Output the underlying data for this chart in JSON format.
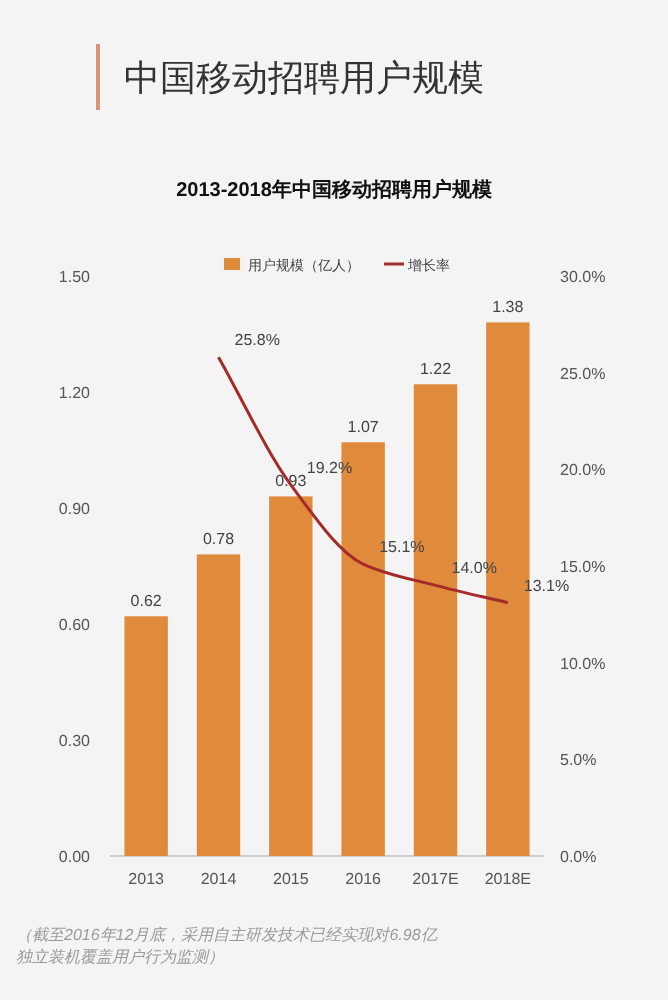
{
  "chart_data": {
    "type": "bar",
    "title": "中国移动招聘用户规模",
    "subtitle": "2013-2018年中国移动招聘用户规模",
    "categories": [
      "2013",
      "2014",
      "2015",
      "2016",
      "2017E",
      "2018E"
    ],
    "series": [
      {
        "name": "用户规模（亿人）",
        "color": "#e08a3c",
        "values": [
          0.62,
          0.78,
          0.93,
          1.07,
          1.22,
          1.38
        ],
        "value_labels": [
          "0.62",
          "0.78",
          "0.93",
          "1.07",
          "1.22",
          "1.38"
        ]
      },
      {
        "name": "增长率",
        "type": "line",
        "axis": "y2",
        "color": "#a52a2a",
        "values": [
          null,
          25.8,
          19.2,
          15.1,
          14.0,
          13.1
        ],
        "value_labels": [
          null,
          "25.8%",
          "19.2%",
          "15.1%",
          "14.0%",
          "13.1%"
        ]
      }
    ],
    "ylim": [
      0,
      1.5
    ],
    "yticks": [
      {
        "value": 0,
        "label": "0.00"
      },
      {
        "value": 0.3,
        "label": "0.30"
      },
      {
        "value": 0.6,
        "label": "0.60"
      },
      {
        "value": 0.9,
        "label": "0.90"
      },
      {
        "value": 1.2,
        "label": "1.20"
      },
      {
        "value": 1.5,
        "label": "1.50"
      }
    ],
    "y2lim": [
      0,
      30
    ],
    "y2ticks": [
      {
        "value": 0,
        "label": "0.0%"
      },
      {
        "value": 5,
        "label": "5.0%"
      },
      {
        "value": 10,
        "label": "10.0%"
      },
      {
        "value": 15,
        "label": "15.0%"
      },
      {
        "value": 20,
        "label": "20.0%"
      },
      {
        "value": 25,
        "label": "25.0%"
      },
      {
        "value": 30,
        "label": "30.0%"
      }
    ],
    "legend": "top",
    "grid": false,
    "marker": "none",
    "line_style": "solid",
    "annotations": [
      "（截至2016年12月底，采用自主研发技术已经实现对6.98亿独立装机覆盖用户行为监测）"
    ]
  }
}
